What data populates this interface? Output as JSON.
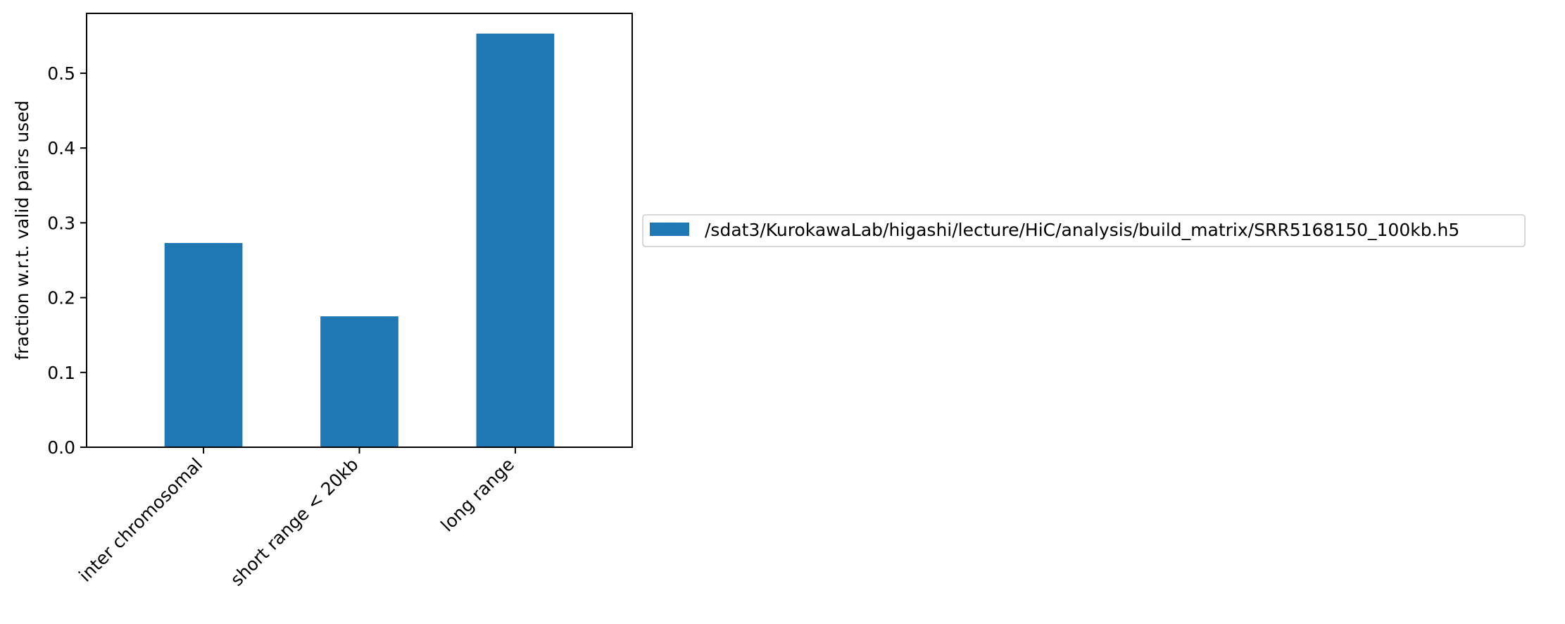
{
  "chart_data": {
    "type": "bar",
    "categories": [
      "inter chromosomal",
      "short range < 20kb",
      "long range"
    ],
    "series": [
      {
        "name": "/sdat3/KurokawaLab/higashi/lecture/HiC/analysis/build_matrix/SRR5168150_100kb.h5",
        "values": [
          0.273,
          0.175,
          0.553
        ],
        "color": "#1f77b4"
      }
    ],
    "title": "",
    "xlabel": "",
    "ylabel": "fraction w.r.t. valid pairs used",
    "ylim": [
      0,
      0.58
    ],
    "yticks": [
      0.0,
      0.1,
      0.2,
      0.3,
      0.4,
      0.5
    ],
    "ytick_labels": [
      "0.0",
      "0.1",
      "0.2",
      "0.3",
      "0.4",
      "0.5"
    ],
    "grid": false,
    "legend_placement": "outside right"
  }
}
